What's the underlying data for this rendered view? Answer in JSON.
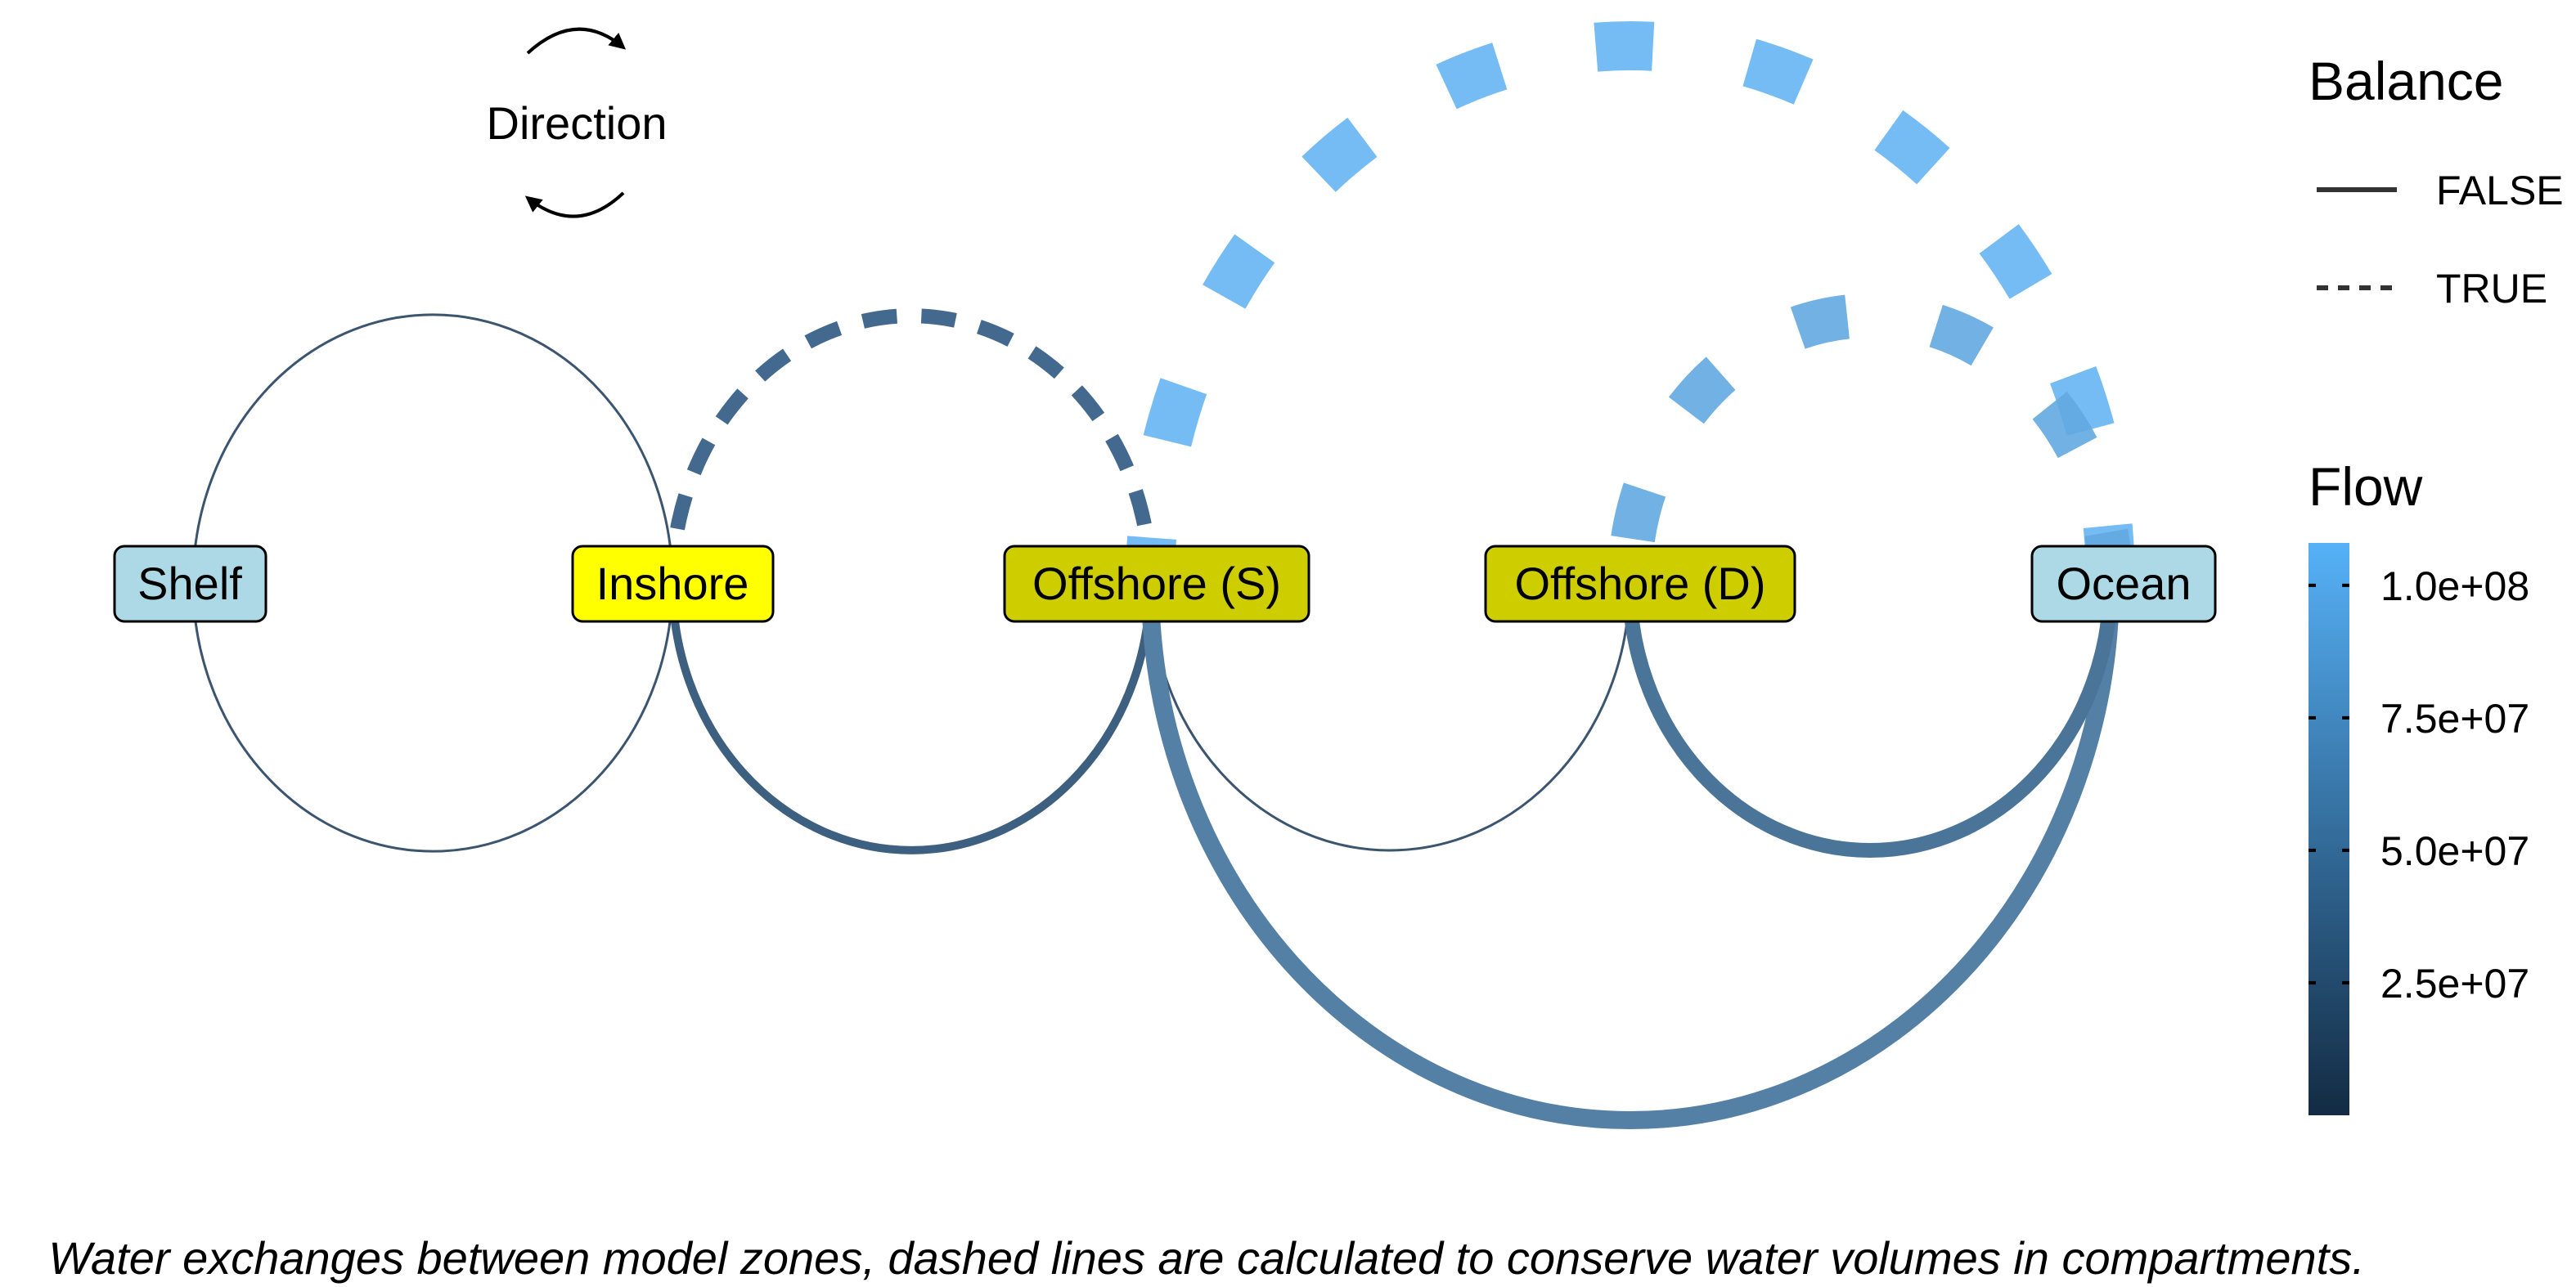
{
  "direction_label": "Direction",
  "nodes": [
    {
      "id": "shelf",
      "label": "Shelf",
      "color": "#ADD8E6"
    },
    {
      "id": "inshore",
      "label": "Inshore",
      "color": "#FFFF00"
    },
    {
      "id": "offshore_s",
      "label": "Offshore (S)",
      "color": "#CDCD00"
    },
    {
      "id": "offshore_d",
      "label": "Offshore (D)",
      "color": "#CDCD00"
    },
    {
      "id": "ocean",
      "label": "Ocean",
      "color": "#ADD8E6"
    }
  ],
  "edges": [
    {
      "from": "shelf",
      "to": "inshore",
      "balance": false,
      "flow": 5000000,
      "color": "#3B5570"
    },
    {
      "from": "inshore",
      "to": "shelf",
      "balance": false,
      "flow": 5000000,
      "color": "#3B5570"
    },
    {
      "from": "inshore",
      "to": "offshore_s",
      "balance": false,
      "flow": 42000000,
      "color": "#3D5F80"
    },
    {
      "from": "offshore_s",
      "to": "inshore",
      "balance": true,
      "flow": 45000000,
      "color": "#436A8E"
    },
    {
      "from": "offshore_s",
      "to": "offshore_d",
      "balance": false,
      "flow": 5000000,
      "color": "#3B5570"
    },
    {
      "from": "offshore_s",
      "to": "ocean",
      "balance": false,
      "flow": 60000000,
      "color": "#5580A6"
    },
    {
      "from": "ocean",
      "to": "offshore_s",
      "balance": true,
      "flow": 100000000,
      "color": "#6DB8F2"
    },
    {
      "from": "offshore_d",
      "to": "ocean",
      "balance": false,
      "flow": 52000000,
      "color": "#4B7499"
    },
    {
      "from": "ocean",
      "to": "offshore_d",
      "balance": true,
      "flow": 88000000,
      "color": "#62A8E0"
    }
  ],
  "legend_balance": {
    "title": "Balance",
    "items": [
      {
        "label": "FALSE",
        "style": "solid"
      },
      {
        "label": "TRUE",
        "style": "dashed"
      }
    ]
  },
  "legend_flow": {
    "title": "Flow",
    "ticks": [
      {
        "label": "1.0e+08",
        "value": 100000000
      },
      {
        "label": "7.5e+07",
        "value": 75000000
      },
      {
        "label": "5.0e+07",
        "value": 50000000
      },
      {
        "label": "2.5e+07",
        "value": 25000000
      }
    ],
    "min": 0,
    "max": 108000000,
    "color_low": "#132B43",
    "color_high": "#56B1F7"
  },
  "caption": "Water exchanges between model zones, dashed lines are calculated to conserve water volumes in compartments."
}
